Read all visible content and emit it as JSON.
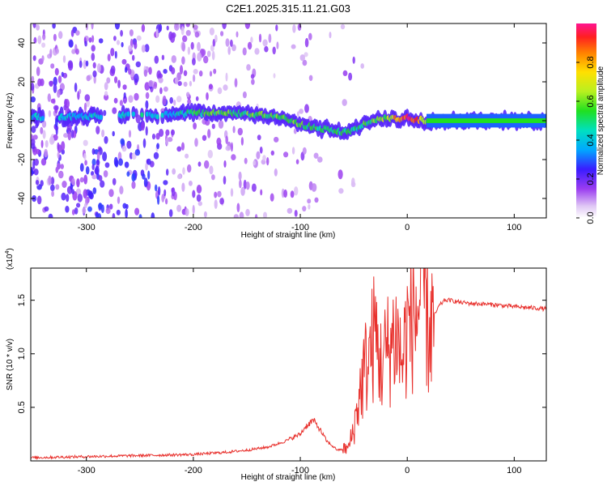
{
  "title": "C2E1.2025.315.11.21.G03",
  "chart_data": [
    {
      "type": "heatmap",
      "panel": "spectrogram",
      "xlabel": "Height of straight line (km)",
      "ylabel": "Frequency (Hz)",
      "xlim": [
        -352,
        130
      ],
      "ylim": [
        -50,
        50
      ],
      "xticks": [
        -300,
        -200,
        -100,
        0,
        100
      ],
      "xtick_labels": [
        "-300",
        "-200",
        "-100",
        "0",
        "100"
      ],
      "yticks": [
        -40,
        -20,
        0,
        20,
        40
      ],
      "ytick_labels": [
        "-40",
        "-20",
        "0",
        "20",
        "40"
      ],
      "colorbar": {
        "label": "Normalized spectral amplitude",
        "range": [
          0,
          1
        ],
        "ticks": [
          0.0,
          0.2,
          0.4,
          0.6,
          0.8
        ],
        "tick_labels": [
          "0.0",
          "0.2",
          "0.4",
          "0.6",
          "0.8"
        ]
      },
      "ridge": {
        "description": "dominant frequency versus height",
        "x": [
          -352,
          -300,
          -250,
          -220,
          -200,
          -180,
          -150,
          -130,
          -120,
          -100,
          -80,
          -60,
          -45,
          -35,
          -20,
          -10,
          0,
          10,
          20,
          50,
          100,
          130
        ],
        "freq": [
          2,
          2,
          3,
          3,
          4,
          4,
          3.5,
          3,
          2,
          -2,
          -4,
          -6,
          -4,
          0,
          1,
          1,
          1.5,
          0.5,
          0,
          0,
          0,
          0
        ],
        "peak_amplitude": [
          0.4,
          0.4,
          0.45,
          0.4,
          0.5,
          0.55,
          0.55,
          0.55,
          0.55,
          0.55,
          0.5,
          0.5,
          0.5,
          0.55,
          0.6,
          0.8,
          0.9,
          0.9,
          0.5,
          0.55,
          0.55,
          0.55
        ]
      }
    },
    {
      "type": "line",
      "panel": "snr",
      "xlabel": "Height of straight line (km)",
      "ylabel": "SNR (10 * v/v)",
      "scale_label": "(x10",
      "scale_exponent": "4",
      "scale_close": ")",
      "xlim": [
        -352,
        130
      ],
      "ylim": [
        0,
        1.8
      ],
      "xticks": [
        -300,
        -200,
        -100,
        0,
        100
      ],
      "xtick_labels": [
        "-300",
        "-200",
        "-100",
        "0",
        "100"
      ],
      "yticks": [
        0.5,
        1.0,
        1.5
      ],
      "ytick_labels": [
        "0.5",
        "1.0",
        "1.5"
      ],
      "color": "#e8302c",
      "series": [
        {
          "name": "SNR",
          "x": [
            -352,
            -300,
            -250,
            -200,
            -170,
            -150,
            -130,
            -115,
            -100,
            -95,
            -88,
            -82,
            -75,
            -65,
            -55,
            -50,
            -45,
            -40,
            -35,
            -30,
            -25,
            -20,
            -15,
            -10,
            -5,
            0,
            5,
            10,
            15,
            20,
            25,
            30,
            35,
            40,
            50,
            60,
            80,
            100,
            130
          ],
          "y": [
            0.03,
            0.04,
            0.05,
            0.06,
            0.08,
            0.1,
            0.13,
            0.18,
            0.25,
            0.32,
            0.38,
            0.3,
            0.18,
            0.1,
            0.12,
            0.3,
            0.6,
            0.85,
            1.0,
            1.2,
            0.9,
            1.0,
            1.1,
            1.2,
            0.9,
            1.25,
            1.35,
            1.4,
            1.7,
            1.2,
            1.35,
            1.45,
            1.5,
            1.5,
            1.48,
            1.47,
            1.46,
            1.44,
            1.42
          ]
        }
      ]
    }
  ]
}
